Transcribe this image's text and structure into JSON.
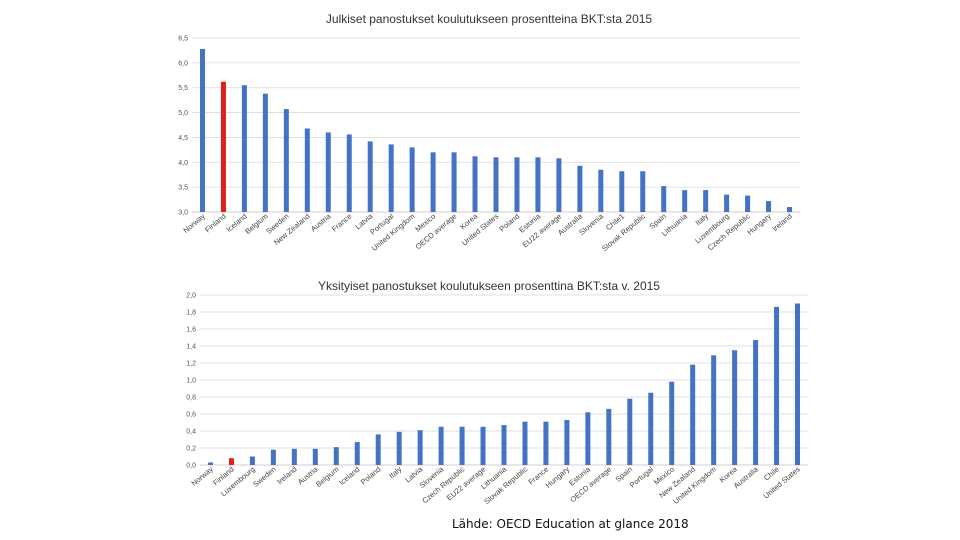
{
  "chart_data": [
    {
      "type": "bar",
      "title": "Julkiset panostukset koulutukseen prosentteina BKT:sta 2015",
      "ylim": [
        3.0,
        6.5
      ],
      "yticks": [
        "3,0",
        "3,5",
        "4,0",
        "4,5",
        "5,0",
        "5,5",
        "6,0",
        "6,5"
      ],
      "highlight": "Finland",
      "grid": true,
      "categories": [
        "Norway",
        "Finland",
        "Iceland",
        "Belgium",
        "Sweden",
        "New Zealand",
        "Austria",
        "France",
        "Latvia",
        "Portugal",
        "United Kingdom",
        "Mexico",
        "OECD average",
        "Korea",
        "United States",
        "Poland",
        "Estonia",
        "EU22 average",
        "Australia",
        "Slovenia",
        "Chile1",
        "Slovak Republic",
        "Spain",
        "Lithuania",
        "Italy",
        "Luxembourg",
        "Czech Republic",
        "Hungary",
        "Ireland"
      ],
      "values": [
        6.28,
        5.62,
        5.55,
        5.38,
        5.07,
        4.68,
        4.6,
        4.56,
        4.42,
        4.36,
        4.3,
        4.2,
        4.2,
        4.12,
        4.1,
        4.1,
        4.1,
        4.08,
        3.93,
        3.85,
        3.82,
        3.82,
        3.52,
        3.44,
        3.44,
        3.35,
        3.33,
        3.22,
        3.1
      ]
    },
    {
      "type": "bar",
      "title": "Yksityiset panostukset koulutukseen prosenttina BKT:sta v. 2015",
      "ylim": [
        0.0,
        2.0
      ],
      "yticks": [
        "0,0",
        "0,2",
        "0,4",
        "0,6",
        "0,8",
        "1,0",
        "1,2",
        "1,4",
        "1,6",
        "1,8",
        "2,0"
      ],
      "highlight": "Finland",
      "grid": true,
      "categories": [
        "Norway",
        "Finland",
        "Luxembourg",
        "Sweden",
        "Ireland",
        "Austria",
        "Belgium",
        "Iceland",
        "Poland",
        "Italy",
        "Latvia",
        "Slovenia",
        "Czech Republic",
        "EU22 average",
        "Lithuania",
        "Slovak Republic",
        "France",
        "Hungary",
        "Estonia",
        "OECD average",
        "Spain",
        "Portugal",
        "Mexico",
        "New Zealand",
        "United Kingdom",
        "Korea",
        "Australia",
        "Chile",
        "United States"
      ],
      "values": [
        0.03,
        0.08,
        0.1,
        0.18,
        0.19,
        0.19,
        0.21,
        0.27,
        0.36,
        0.39,
        0.41,
        0.45,
        0.45,
        0.45,
        0.47,
        0.51,
        0.51,
        0.53,
        0.62,
        0.66,
        0.78,
        0.85,
        0.98,
        1.18,
        1.29,
        1.35,
        1.47,
        1.86,
        1.9
      ]
    }
  ],
  "colors": {
    "bar": "#4472C4",
    "highlight": "#E0201A",
    "grid": "#D9D9D9",
    "axis": "#BFBFBF"
  },
  "source": "Lähde: OECD Education at glance 2018"
}
